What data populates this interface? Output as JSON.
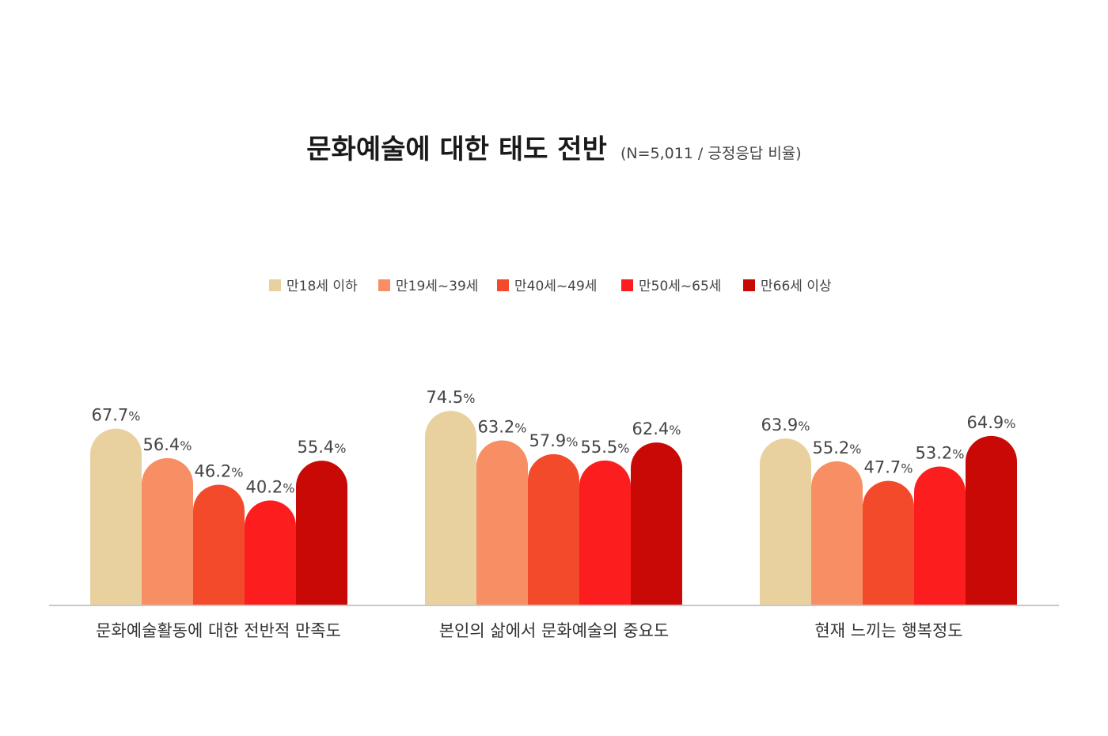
{
  "chart_data": {
    "type": "bar",
    "title": "문화예술에 대한 태도 전반",
    "subtitle": "(N=5,011 / 긍정응답 비율)",
    "unit": "%",
    "categories": [
      "문화예술활동에 대한 전반적 만족도",
      "본인의 삶에서 문화예술의 중요도",
      "현재 느끼는 행복정도"
    ],
    "series": [
      {
        "name": "만18세 이하",
        "color": "#E8D19E",
        "values": [
          67.7,
          74.5,
          63.9
        ]
      },
      {
        "name": "만19세~39세",
        "color": "#F78E64",
        "values": [
          56.4,
          63.2,
          55.2
        ]
      },
      {
        "name": "만40세~49세",
        "color": "#F44A2C",
        "values": [
          46.2,
          57.9,
          47.7
        ]
      },
      {
        "name": "만50세~65세",
        "color": "#FC1E1E",
        "values": [
          40.2,
          55.5,
          53.2
        ]
      },
      {
        "name": "만66세 이상",
        "color": "#C90905",
        "values": [
          55.4,
          62.4,
          64.9
        ]
      }
    ],
    "ylim": [
      0,
      100
    ],
    "grid": false,
    "legend": "top-center"
  }
}
